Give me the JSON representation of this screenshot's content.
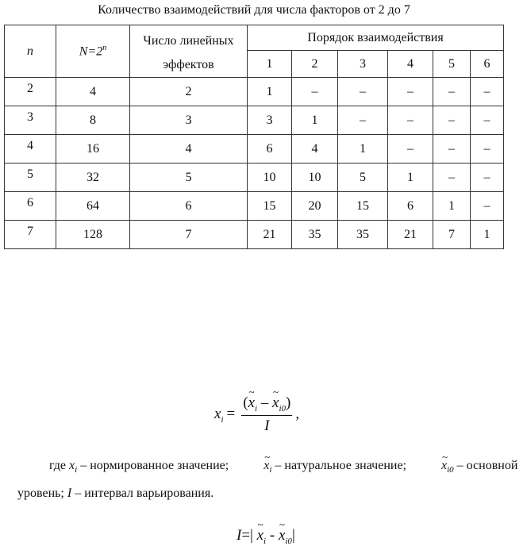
{
  "caption": "Количество взаимодействий для числа факторов от 2 до 7",
  "table": {
    "headers": {
      "n": "n",
      "N": "N=2",
      "N_sup": "n",
      "linear": "Число линейных эффектов",
      "order": "Порядок взаимодействия",
      "orders": [
        "1",
        "2",
        "3",
        "4",
        "5",
        "6"
      ]
    },
    "rows": [
      [
        "2",
        "4",
        "2",
        "1",
        "–",
        "–",
        "–",
        "–",
        "–"
      ],
      [
        "3",
        "8",
        "3",
        "3",
        "1",
        "–",
        "–",
        "–",
        "–"
      ],
      [
        "4",
        "16",
        "4",
        "6",
        "4",
        "1",
        "–",
        "–",
        "–"
      ],
      [
        "5",
        "32",
        "5",
        "10",
        "10",
        "5",
        "1",
        "–",
        "–"
      ],
      [
        "6",
        "64",
        "6",
        "15",
        "20",
        "15",
        "6",
        "1",
        "–"
      ],
      [
        "7",
        "128",
        "7",
        "21",
        "35",
        "35",
        "21",
        "7",
        "1"
      ]
    ]
  },
  "formula1": {
    "lhs": "x",
    "lhs_sub": "i",
    "eq": "=",
    "num_open": "(",
    "x": "x",
    "i": "i",
    "minus": " – ",
    "i0": "i0",
    "num_close": ")",
    "den": "I",
    "comma": ","
  },
  "paragraph": {
    "p1": "где ",
    "x": "x",
    "i": "i",
    "t1": " – нормированное значение; ",
    "t2": " – натуральное значение; ",
    "i0": "i0",
    "t3": " – основной уровень; ",
    "I": "I",
    "t4": " – интервал варьирования."
  },
  "formula2": {
    "I": "I",
    "eq": "=|",
    "minus": " - ",
    "close": "|"
  }
}
